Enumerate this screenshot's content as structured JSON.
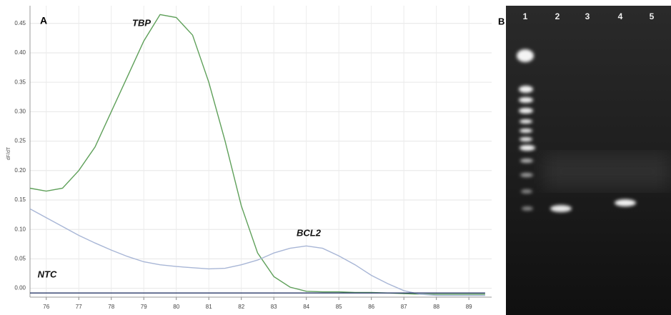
{
  "chart_data": {
    "type": "line",
    "panel_label": "A",
    "ylabel": "dF/dT",
    "x": [
      75.5,
      76,
      76.5,
      77,
      77.5,
      78,
      78.5,
      79,
      79.5,
      80,
      80.5,
      81,
      81.5,
      82,
      82.5,
      83,
      83.5,
      84,
      84.5,
      85,
      85.5,
      86,
      86.5,
      87,
      87.5,
      88,
      88.5,
      89,
      89.5
    ],
    "series": [
      {
        "name": "TBP",
        "color": "#5fa05a",
        "values": [
          0.17,
          0.165,
          0.17,
          0.2,
          0.24,
          0.3,
          0.36,
          0.42,
          0.465,
          0.46,
          0.43,
          0.35,
          0.25,
          0.14,
          0.06,
          0.02,
          0.002,
          -0.005,
          -0.006,
          -0.006,
          -0.007,
          -0.007,
          -0.008,
          -0.009,
          -0.01,
          -0.01,
          -0.01,
          -0.01,
          -0.01
        ]
      },
      {
        "name": "BCL2",
        "color": "#a8b6d6",
        "values": [
          0.135,
          0.12,
          0.105,
          0.09,
          0.077,
          0.065,
          0.054,
          0.045,
          0.04,
          0.037,
          0.035,
          0.033,
          0.034,
          0.04,
          0.048,
          0.06,
          0.068,
          0.072,
          0.068,
          0.055,
          0.04,
          0.022,
          0.008,
          -0.004,
          -0.01,
          -0.012,
          -0.012,
          -0.012,
          -0.012
        ]
      },
      {
        "name": "NTC",
        "color": "#2a3a6a",
        "values": [
          -0.008,
          -0.008,
          -0.008,
          -0.008,
          -0.008,
          -0.008,
          -0.008,
          -0.008,
          -0.008,
          -0.008,
          -0.008,
          -0.008,
          -0.008,
          -0.008,
          -0.008,
          -0.008,
          -0.008,
          -0.008,
          -0.008,
          -0.008,
          -0.008,
          -0.008,
          -0.008,
          -0.008,
          -0.008,
          -0.008,
          -0.008,
          -0.008,
          -0.008
        ]
      }
    ],
    "xlim": [
      75.5,
      89.7
    ],
    "ylim": [
      -0.015,
      0.48
    ],
    "xticks": [
      76,
      77,
      78,
      79,
      80,
      81,
      82,
      83,
      84,
      85,
      86,
      87,
      88,
      89
    ],
    "yticks": [
      {
        "value": 0,
        "label": "0.00"
      },
      {
        "value": 0.05,
        "label": "0.05"
      },
      {
        "value": 0.1,
        "label": "0.10"
      },
      {
        "value": 0.15,
        "label": "0.15"
      },
      {
        "value": 0.2,
        "label": "0.20"
      },
      {
        "value": 0.25,
        "label": "0.25"
      },
      {
        "value": 0.3,
        "label": "0.30"
      },
      {
        "value": 0.35,
        "label": "0.35"
      },
      {
        "value": 0.4,
        "label": "0.40"
      },
      {
        "value": 0.45,
        "label": "0.45"
      }
    ],
    "grid": true
  },
  "gel": {
    "panel_label": "B",
    "lanes": [
      "1",
      "2",
      "3",
      "4",
      "5"
    ]
  }
}
